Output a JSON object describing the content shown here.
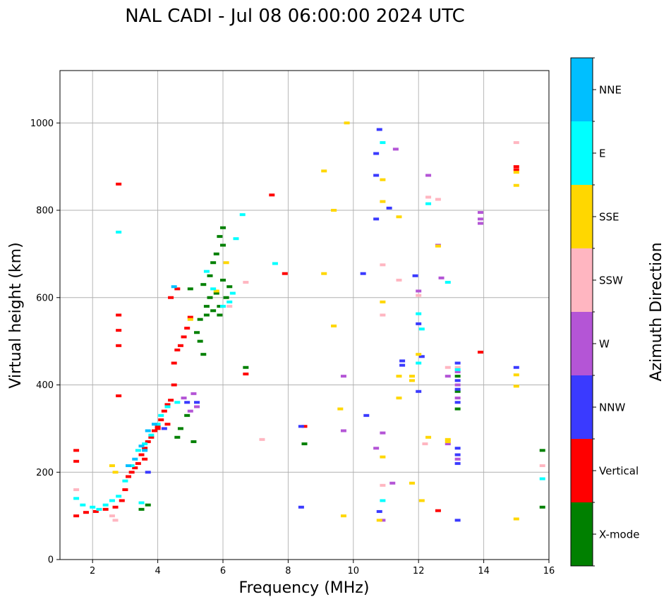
{
  "chart_data": {
    "type": "scatter",
    "title": "NAL CADI - Jul 08 06:00:00 2024 UTC",
    "xlabel": "Frequency (MHz)",
    "ylabel": "Virtual height (km)",
    "xlim": [
      1,
      16
    ],
    "ylim": [
      0,
      1120
    ],
    "xticks": [
      2,
      4,
      6,
      8,
      10,
      12,
      14,
      16
    ],
    "xtick_labels": [
      "2",
      "4",
      "6",
      "8",
      "10",
      "12",
      "14",
      "16"
    ],
    "yticks": [
      0,
      200,
      400,
      600,
      800,
      1000
    ],
    "ytick_labels": [
      "0",
      "200",
      "400",
      "600",
      "800",
      "1000"
    ],
    "grid": true,
    "colorbar": {
      "label": "Azimuth Direction",
      "categories": [
        "X-mode",
        "Vertical",
        "NNW",
        "W",
        "SSW",
        "SSE",
        "E",
        "NNE"
      ],
      "colors": [
        "#008000",
        "#ff0000",
        "#3a3aff",
        "#b455d6",
        "#ffb6c1",
        "#ffd700",
        "#00ffff",
        "#00bfff"
      ]
    },
    "series": [
      {
        "name": "X-mode",
        "points": [
          [
            5.3,
            550
          ],
          [
            5.5,
            580
          ],
          [
            5.6,
            600
          ],
          [
            5.7,
            570
          ],
          [
            5.8,
            610
          ],
          [
            5.9,
            580
          ],
          [
            6.0,
            640
          ],
          [
            5.4,
            630
          ],
          [
            5.2,
            520
          ],
          [
            5.6,
            650
          ],
          [
            5.8,
            700
          ],
          [
            5.9,
            740
          ],
          [
            6.0,
            720
          ],
          [
            5.7,
            680
          ],
          [
            5.5,
            560
          ],
          [
            5.3,
            500
          ],
          [
            6.0,
            760
          ],
          [
            6.1,
            600
          ],
          [
            5.9,
            560
          ],
          [
            5.0,
            620
          ],
          [
            4.7,
            300
          ],
          [
            4.9,
            330
          ],
          [
            5.1,
            270
          ],
          [
            4.6,
            280
          ],
          [
            3.7,
            125
          ],
          [
            3.5,
            115
          ],
          [
            6.7,
            440
          ],
          [
            8.5,
            265
          ],
          [
            15.8,
            250
          ],
          [
            15.8,
            120
          ],
          [
            13.2,
            420
          ],
          [
            13.2,
            385
          ],
          [
            13.2,
            345
          ],
          [
            6.2,
            625
          ],
          [
            5.4,
            470
          ]
        ]
      },
      {
        "name": "Vertical",
        "points": [
          [
            1.5,
            250
          ],
          [
            1.5,
            225
          ],
          [
            1.5,
            100
          ],
          [
            1.8,
            108
          ],
          [
            2.1,
            110
          ],
          [
            2.4,
            115
          ],
          [
            2.7,
            120
          ],
          [
            2.9,
            135
          ],
          [
            3.0,
            160
          ],
          [
            3.1,
            190
          ],
          [
            3.2,
            200
          ],
          [
            3.3,
            210
          ],
          [
            3.4,
            220
          ],
          [
            3.5,
            240
          ],
          [
            3.6,
            255
          ],
          [
            3.7,
            270
          ],
          [
            3.8,
            280
          ],
          [
            3.9,
            295
          ],
          [
            4.0,
            305
          ],
          [
            4.1,
            320
          ],
          [
            4.2,
            340
          ],
          [
            4.3,
            355
          ],
          [
            4.4,
            365
          ],
          [
            4.5,
            400
          ],
          [
            4.5,
            450
          ],
          [
            4.6,
            480
          ],
          [
            4.7,
            490
          ],
          [
            4.8,
            510
          ],
          [
            4.9,
            530
          ],
          [
            5.0,
            555
          ],
          [
            4.4,
            600
          ],
          [
            4.6,
            620
          ],
          [
            2.8,
            860
          ],
          [
            2.8,
            560
          ],
          [
            2.8,
            525
          ],
          [
            2.8,
            490
          ],
          [
            2.8,
            375
          ],
          [
            7.5,
            835
          ],
          [
            7.9,
            655
          ],
          [
            8.5,
            305
          ],
          [
            13.9,
            475
          ],
          [
            15.0,
            900
          ],
          [
            15.0,
            893
          ],
          [
            12.6,
            112
          ],
          [
            6.7,
            425
          ],
          [
            4.0,
            300
          ],
          [
            3.6,
            230
          ],
          [
            4.3,
            310
          ]
        ]
      },
      {
        "name": "NNW",
        "points": [
          [
            3.7,
            200
          ],
          [
            4.2,
            300
          ],
          [
            4.9,
            360
          ],
          [
            5.2,
            360
          ],
          [
            8.4,
            120
          ],
          [
            8.4,
            305
          ],
          [
            10.3,
            655
          ],
          [
            10.4,
            330
          ],
          [
            10.8,
            985
          ],
          [
            10.7,
            930
          ],
          [
            10.7,
            880
          ],
          [
            11.1,
            805
          ],
          [
            10.7,
            780
          ],
          [
            11.5,
            455
          ],
          [
            11.5,
            445
          ],
          [
            12.0,
            540
          ],
          [
            12.0,
            385
          ],
          [
            13.2,
            450
          ],
          [
            13.2,
            410
          ],
          [
            13.2,
            390
          ],
          [
            13.2,
            360
          ],
          [
            13.2,
            255
          ],
          [
            13.2,
            240
          ],
          [
            13.2,
            220
          ],
          [
            13.2,
            90
          ],
          [
            15.0,
            440
          ],
          [
            10.8,
            110
          ],
          [
            11.9,
            650
          ],
          [
            12.1,
            465
          ]
        ]
      },
      {
        "name": "W",
        "points": [
          [
            4.8,
            370
          ],
          [
            5.0,
            340
          ],
          [
            5.2,
            350
          ],
          [
            9.7,
            420
          ],
          [
            9.7,
            295
          ],
          [
            10.9,
            290
          ],
          [
            10.7,
            255
          ],
          [
            11.2,
            175
          ],
          [
            11.3,
            940
          ],
          [
            12.3,
            880
          ],
          [
            12.6,
            720
          ],
          [
            12.7,
            645
          ],
          [
            12.9,
            420
          ],
          [
            12.9,
            265
          ],
          [
            13.2,
            430
          ],
          [
            13.2,
            400
          ],
          [
            13.2,
            370
          ],
          [
            13.2,
            230
          ],
          [
            13.9,
            795
          ],
          [
            13.9,
            780
          ],
          [
            13.9,
            770
          ],
          [
            10.9,
            90
          ],
          [
            12.0,
            615
          ],
          [
            5.1,
            380
          ]
        ]
      },
      {
        "name": "SSW",
        "points": [
          [
            1.5,
            160
          ],
          [
            2.6,
            100
          ],
          [
            2.7,
            90
          ],
          [
            7.2,
            275
          ],
          [
            10.9,
            675
          ],
          [
            10.9,
            560
          ],
          [
            10.9,
            170
          ],
          [
            11.4,
            640
          ],
          [
            12.0,
            605
          ],
          [
            12.2,
            265
          ],
          [
            12.3,
            830
          ],
          [
            12.6,
            825
          ],
          [
            12.9,
            440
          ],
          [
            15.0,
            955
          ],
          [
            15.8,
            215
          ],
          [
            13.2,
            440
          ],
          [
            6.2,
            580
          ],
          [
            6.7,
            635
          ]
        ]
      },
      {
        "name": "SSE",
        "points": [
          [
            2.6,
            215
          ],
          [
            2.7,
            200
          ],
          [
            9.1,
            890
          ],
          [
            9.1,
            655
          ],
          [
            9.4,
            800
          ],
          [
            9.4,
            535
          ],
          [
            9.6,
            345
          ],
          [
            9.7,
            100
          ],
          [
            9.8,
            1000
          ],
          [
            10.9,
            870
          ],
          [
            10.9,
            820
          ],
          [
            10.9,
            590
          ],
          [
            10.9,
            235
          ],
          [
            10.8,
            90
          ],
          [
            11.4,
            785
          ],
          [
            11.4,
            420
          ],
          [
            11.4,
            370
          ],
          [
            11.8,
            420
          ],
          [
            11.8,
            410
          ],
          [
            11.8,
            175
          ],
          [
            12.0,
            470
          ],
          [
            12.1,
            135
          ],
          [
            12.3,
            280
          ],
          [
            12.6,
            718
          ],
          [
            12.9,
            275
          ],
          [
            12.9,
            270
          ],
          [
            15.0,
            887
          ],
          [
            15.0,
            857
          ],
          [
            15.0,
            423
          ],
          [
            15.0,
            397
          ],
          [
            15.0,
            93
          ],
          [
            6.1,
            680
          ],
          [
            5.8,
            615
          ],
          [
            5.0,
            550
          ]
        ]
      },
      {
        "name": "E",
        "points": [
          [
            1.7,
            125
          ],
          [
            2.0,
            120
          ],
          [
            2.2,
            115
          ],
          [
            2.4,
            125
          ],
          [
            2.6,
            135
          ],
          [
            2.8,
            145
          ],
          [
            3.0,
            180
          ],
          [
            3.2,
            215
          ],
          [
            3.4,
            250
          ],
          [
            3.6,
            265
          ],
          [
            3.8,
            285
          ],
          [
            4.0,
            310
          ],
          [
            4.1,
            330
          ],
          [
            4.3,
            350
          ],
          [
            4.6,
            360
          ],
          [
            6.0,
            580
          ],
          [
            6.3,
            610
          ],
          [
            6.2,
            590
          ],
          [
            6.4,
            735
          ],
          [
            6.6,
            790
          ],
          [
            5.5,
            660
          ],
          [
            5.7,
            620
          ],
          [
            7.6,
            678
          ],
          [
            10.9,
            955
          ],
          [
            10.9,
            135
          ],
          [
            12.0,
            563
          ],
          [
            12.1,
            528
          ],
          [
            12.0,
            450
          ],
          [
            12.3,
            815
          ],
          [
            12.9,
            635
          ],
          [
            15.8,
            185
          ],
          [
            13.2,
            435
          ],
          [
            2.8,
            750
          ],
          [
            1.5,
            140
          ],
          [
            3.5,
            130
          ]
        ]
      },
      {
        "name": "NNE",
        "points": [
          [
            3.1,
            215
          ],
          [
            3.3,
            230
          ],
          [
            3.5,
            260
          ],
          [
            3.7,
            295
          ],
          [
            3.9,
            310
          ],
          [
            3.6,
            250
          ],
          [
            4.5,
            625
          ]
        ]
      }
    ]
  }
}
